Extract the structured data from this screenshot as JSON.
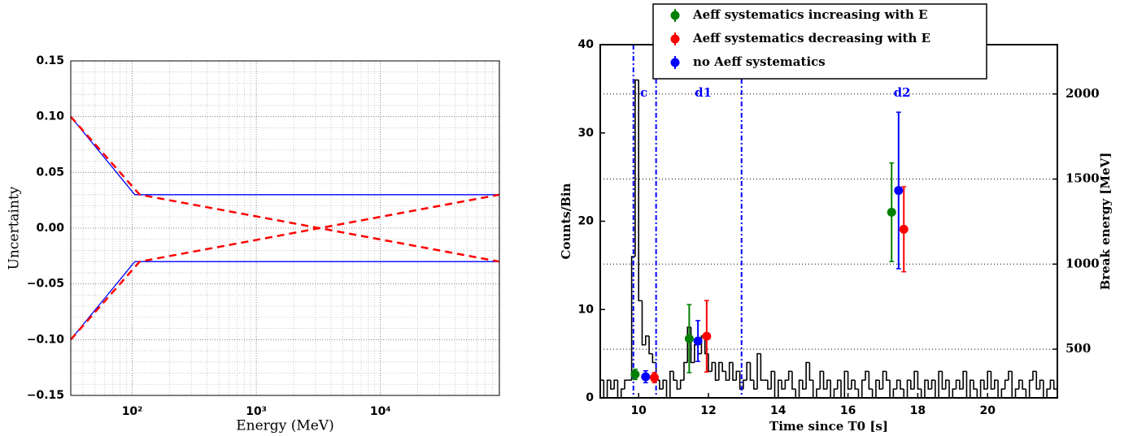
{
  "chart_data": [
    {
      "type": "line",
      "ylabel": "Uncertainty",
      "xlabel": "Energy (MeV)",
      "xscale": "log",
      "xlim": [
        32,
        91000
      ],
      "ylim": [
        -0.15,
        0.15
      ],
      "xticks": [
        {
          "value": 100,
          "label": "10²"
        },
        {
          "value": 1000,
          "label": "10³"
        },
        {
          "value": 10000,
          "label": "10⁴"
        }
      ],
      "yticks": [
        {
          "value": -0.15,
          "label": "−0.15"
        },
        {
          "value": -0.1,
          "label": "−0.10"
        },
        {
          "value": -0.05,
          "label": "−0.05"
        },
        {
          "value": 0,
          "label": "0.00"
        },
        0.05,
        {
          "value": 0.1,
          "label": "0.10"
        },
        0.15
      ],
      "grid": true,
      "series": [
        {
          "color": "#0000ff",
          "style": "solid",
          "x": [
            32,
            105,
            91000
          ],
          "values": [
            0.1,
            0.03,
            0.03
          ]
        },
        {
          "color": "#0000ff",
          "style": "solid",
          "x": [
            32,
            105,
            91000
          ],
          "values": [
            -0.1,
            -0.03,
            -0.03
          ]
        },
        {
          "color": "#ff0000",
          "style": "dashed",
          "x": [
            32,
            115,
            91000
          ],
          "values": [
            0.1,
            0.03,
            -0.03
          ]
        },
        {
          "color": "#ff0000",
          "style": "dashed",
          "x": [
            32,
            115,
            91000
          ],
          "values": [
            -0.1,
            -0.03,
            0.03
          ]
        }
      ]
    },
    {
      "type": "histogram",
      "xlabel": "Time since T0 [s]",
      "ylabel": "Counts/Bin",
      "y2label": "Break energy [MeV]",
      "xlim": [
        8.9,
        22.0
      ],
      "ylim": [
        0,
        40
      ],
      "y2lim": [
        214,
        2290
      ],
      "xticks": [
        10,
        12,
        14,
        16,
        18,
        20
      ],
      "yticks": [
        0,
        10,
        20,
        30,
        40
      ],
      "y2ticks": [
        500,
        1000,
        1500,
        2000
      ],
      "grid": true,
      "color": "#000000",
      "bins": [
        8.9,
        9.0,
        9.1,
        9.2,
        9.3,
        9.4,
        9.5,
        9.6,
        9.7,
        9.8,
        9.9,
        10.0,
        10.1,
        10.2,
        10.3,
        10.4,
        10.5,
        10.6,
        10.7,
        10.8,
        10.9,
        11.0,
        11.1,
        11.2,
        11.3,
        11.4,
        11.5,
        11.6,
        11.7,
        11.8,
        11.9,
        12.0,
        12.1,
        12.2,
        12.3,
        12.4,
        12.5,
        12.6,
        12.7,
        12.8,
        12.9,
        13.0,
        13.1,
        13.2,
        13.3,
        13.4,
        13.5,
        13.6,
        13.7,
        13.8,
        13.9,
        14.0,
        14.1,
        14.2,
        14.3,
        14.4,
        14.5,
        14.6,
        14.7,
        14.8,
        14.9,
        15.0,
        15.1,
        15.2,
        15.3,
        15.4,
        15.5,
        15.6,
        15.7,
        15.8,
        15.9,
        16.0,
        16.1,
        16.2,
        16.3,
        16.4,
        16.5,
        16.6,
        16.7,
        16.8,
        16.9,
        17.0,
        17.1,
        17.2,
        17.3,
        17.4,
        17.5,
        17.6,
        17.7,
        17.8,
        17.9,
        18.0,
        18.1,
        18.2,
        18.3,
        18.4,
        18.5,
        18.6,
        18.7,
        18.8,
        18.9,
        19.0,
        19.1,
        19.2,
        19.3,
        19.4,
        19.5,
        19.6,
        19.7,
        19.8,
        19.9,
        20.0,
        20.1,
        20.2,
        20.3,
        20.4,
        20.5,
        20.6,
        20.7,
        20.8,
        20.9,
        21.0,
        21.1,
        21.2,
        21.3,
        21.4,
        21.5,
        21.6,
        21.7,
        21.8,
        21.9,
        22.0
      ],
      "values": [
        2,
        0,
        2,
        1,
        2,
        0,
        1,
        2,
        2,
        16,
        36,
        11,
        6,
        7,
        5,
        4,
        2,
        1,
        2,
        0,
        3,
        2,
        1,
        2,
        4,
        8,
        4,
        6,
        5,
        7,
        5,
        3,
        4,
        2,
        4,
        3,
        2,
        4,
        2,
        3,
        1,
        2,
        4,
        2,
        1,
        5,
        2,
        2,
        1,
        3,
        0,
        2,
        1,
        2,
        3,
        1,
        0,
        2,
        1,
        4,
        2,
        0,
        1,
        3,
        1,
        2,
        0,
        1,
        2,
        0,
        3,
        1,
        2,
        1,
        0,
        2,
        3,
        1,
        0,
        2,
        1,
        3,
        2,
        0,
        1,
        2,
        1,
        0,
        2,
        1,
        3,
        1,
        0,
        2,
        1,
        2,
        0,
        3,
        1,
        2,
        0,
        1,
        2,
        1,
        3,
        0,
        2,
        1,
        0,
        2,
        1,
        3,
        1,
        2,
        0,
        1,
        2,
        3,
        0,
        1,
        2,
        1,
        0,
        2,
        3,
        1,
        2,
        0,
        1,
        2,
        1
      ],
      "vlines": [
        9.85,
        10.5,
        12.95
      ],
      "vline_color": "#0000ff",
      "annotations": [
        {
          "text": "c",
          "x": 10.15,
          "y": 34.5
        },
        {
          "text": "d1",
          "x": 11.85,
          "y": 34.5
        },
        {
          "text": "d2",
          "x": 17.55,
          "y": 34.5
        }
      ],
      "series": [
        {
          "name": "Aeff systematics increasing with E",
          "color": "#008000",
          "axis": "y2",
          "x": [
            9.9,
            11.45,
            17.25
          ],
          "values": [
            352,
            562,
            1305
          ],
          "errors": [
            30,
            200,
            290
          ]
        },
        {
          "name": "Aeff systematics decreasing with E",
          "color": "#ff0000",
          "axis": "y2",
          "x": [
            10.45,
            11.95,
            17.6
          ],
          "values": [
            333,
            576,
            1205
          ],
          "errors": [
            30,
            210,
            250
          ]
        },
        {
          "name": "no Aeff systematics",
          "color": "#0000ff",
          "axis": "y2",
          "x": [
            10.2,
            11.7,
            17.45
          ],
          "values": [
            338,
            548,
            1433
          ],
          "errors": [
            35,
            120,
            460
          ]
        }
      ]
    }
  ]
}
